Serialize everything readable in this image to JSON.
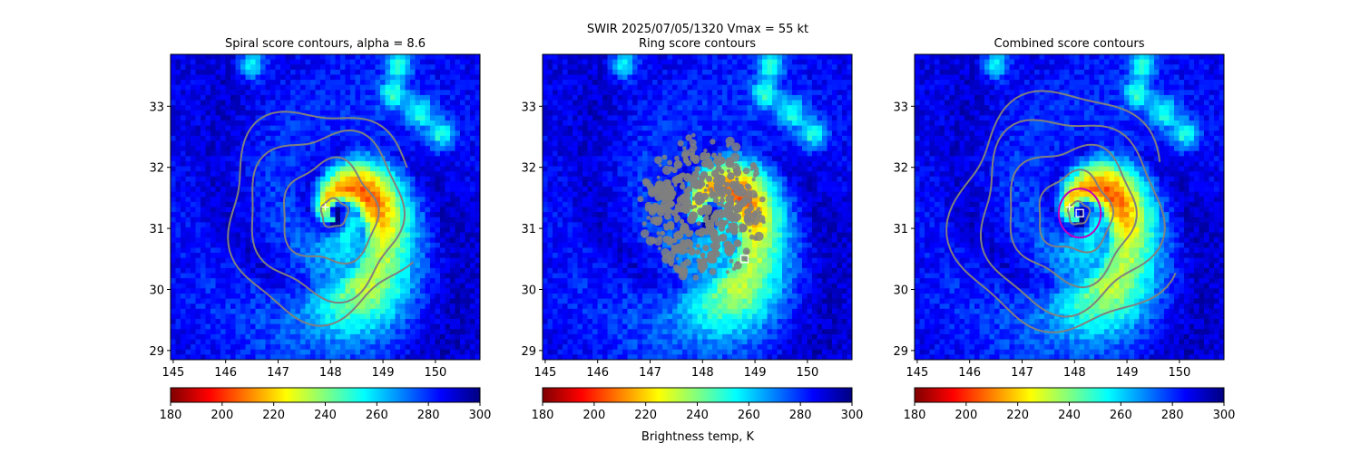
{
  "figure": {
    "suptitle_line1": "SWIR  2025/07/05/1320    Vmax = 55 kt",
    "colorbar_label": "Brightness temp, K"
  },
  "colormap": {
    "name": "jet_r",
    "stops": [
      "#800000",
      "#ff0000",
      "#ff8000",
      "#ffff00",
      "#80ff80",
      "#00ffff",
      "#0080ff",
      "#0000ff",
      "#000080"
    ]
  },
  "chart_data": [
    {
      "type": "heatmap",
      "title": "Spiral score contours, alpha =  8.6",
      "xlim": [
        144.95,
        150.85
      ],
      "ylim": [
        28.85,
        33.85
      ],
      "xticks": [
        145,
        146,
        147,
        148,
        149,
        150
      ],
      "yticks": [
        29,
        30,
        31,
        32,
        33
      ],
      "storm_center": [
        148.1,
        31.2
      ],
      "brightness_temp_range_K": [
        180,
        300
      ],
      "first_guess_marker": [
        147.9,
        31.35
      ],
      "best_center_marker": null,
      "contour_color": "#808080",
      "contour_levels": [
        {
          "radius_deg": 0.25,
          "closed": true
        },
        {
          "radius_deg": 0.9,
          "closed": true
        },
        {
          "radius_deg": 1.45,
          "closed": true
        },
        {
          "radius_deg": 1.85,
          "closed": false
        }
      ],
      "colorbar": {
        "ticks": [
          180,
          200,
          220,
          240,
          260,
          280,
          300
        ]
      }
    },
    {
      "type": "heatmap",
      "title": "Ring score contours",
      "xlim": [
        144.95,
        150.85
      ],
      "ylim": [
        28.85,
        33.85
      ],
      "xticks": [
        145,
        146,
        147,
        148,
        149,
        150
      ],
      "yticks": [
        29,
        30,
        31,
        32,
        33
      ],
      "storm_center": [
        148.1,
        31.2
      ],
      "brightness_temp_range_K": [
        180,
        300
      ],
      "first_guess_marker": null,
      "best_center_marker": [
        148.8,
        30.5
      ],
      "contour_color": "#808080",
      "ring_region": {
        "center": [
          148.0,
          31.35
        ],
        "radius_deg": 1.2
      },
      "colorbar": {
        "ticks": [
          180,
          200,
          220,
          240,
          260,
          280,
          300
        ]
      }
    },
    {
      "type": "heatmap",
      "title": "Combined score contours",
      "xlim": [
        144.95,
        150.85
      ],
      "ylim": [
        28.85,
        33.85
      ],
      "xticks": [
        145,
        146,
        147,
        148,
        149,
        150
      ],
      "yticks": [
        29,
        30,
        31,
        32,
        33
      ],
      "storm_center": [
        148.1,
        31.2
      ],
      "brightness_temp_range_K": [
        180,
        300
      ],
      "first_guess_marker": [
        147.9,
        31.35
      ],
      "best_center_marker": [
        148.1,
        31.25
      ],
      "contour_color": "#808080",
      "highlight_circle": {
        "center": [
          148.1,
          31.25
        ],
        "radius_deg": 0.4,
        "color": "#c000c0"
      },
      "contour_levels": [
        {
          "radius_deg": 0.2,
          "closed": true
        },
        {
          "radius_deg": 0.7,
          "closed": true
        },
        {
          "radius_deg": 1.2,
          "closed": true
        },
        {
          "radius_deg": 1.7,
          "closed": true
        },
        {
          "radius_deg": 2.1,
          "closed": false
        }
      ],
      "colorbar": {
        "ticks": [
          180,
          200,
          220,
          240,
          260,
          280,
          300
        ]
      }
    }
  ]
}
